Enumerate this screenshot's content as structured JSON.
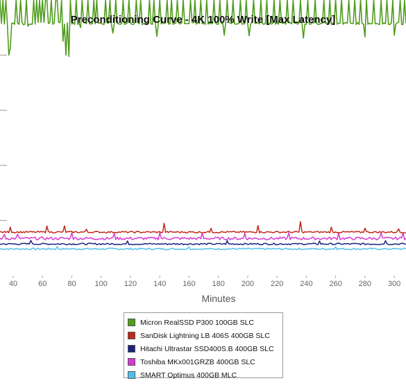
{
  "chart_data": {
    "type": "line",
    "title": "Preconditioning Curve - 4K 100% Write [Max Latency]",
    "xlabel": "Minutes",
    "ylabel": "",
    "xlim": [
      31,
      308
    ],
    "ylim": [
      0,
      1000
    ],
    "x_ticks": [
      40,
      60,
      80,
      100,
      120,
      140,
      160,
      180,
      200,
      220,
      240,
      260,
      280,
      300
    ],
    "y_gridlines": [
      200,
      400,
      600,
      800
    ],
    "grid": true,
    "legend_position": "bottom",
    "series": [
      {
        "name": "Micron RealSSD P300 100GB SLC",
        "color": "#4f9c1c",
        "baseline": 915,
        "noise": 4,
        "spike_to": 1000,
        "spikes": [
          31,
          33,
          35,
          42,
          45,
          49,
          54,
          56,
          58,
          60,
          62,
          63,
          66,
          69,
          70,
          73,
          76,
          79,
          83,
          87,
          91,
          95,
          97,
          103,
          106,
          110,
          115,
          119,
          124,
          127,
          133,
          136,
          140,
          145,
          148,
          152,
          156,
          161,
          164,
          168,
          172,
          177,
          181,
          186,
          190,
          195,
          199,
          204,
          209,
          213,
          218,
          222,
          227,
          231,
          236,
          241,
          246,
          252,
          256,
          260,
          264,
          269,
          273,
          277,
          281,
          286,
          291,
          295,
          299,
          304,
          307
        ],
        "dips": [
          {
            "x": 37,
            "y": 800
          },
          {
            "x": 38,
            "y": 825
          },
          {
            "x": 47,
            "y": 910
          },
          {
            "x": 50,
            "y": 905
          },
          {
            "x": 74,
            "y": 850
          },
          {
            "x": 76,
            "y": 800
          },
          {
            "x": 78,
            "y": 795
          },
          {
            "x": 86,
            "y": 900
          },
          {
            "x": 108,
            "y": 880
          },
          {
            "x": 138,
            "y": 868
          },
          {
            "x": 184,
            "y": 872
          },
          {
            "x": 201,
            "y": 870
          },
          {
            "x": 238,
            "y": 862
          },
          {
            "x": 280,
            "y": 866
          },
          {
            "x": 300,
            "y": 872
          }
        ]
      },
      {
        "name": "SanDisk Lightning LB 406S 400GB SLC",
        "color": "#c0281c",
        "baseline": 158,
        "noise": 3,
        "spikes": [
          {
            "x": 38,
            "y": 176
          },
          {
            "x": 63,
            "y": 180
          },
          {
            "x": 75,
            "y": 181
          },
          {
            "x": 90,
            "y": 168
          },
          {
            "x": 143,
            "y": 190
          },
          {
            "x": 175,
            "y": 172
          },
          {
            "x": 207,
            "y": 182
          },
          {
            "x": 236,
            "y": 196
          },
          {
            "x": 257,
            "y": 176
          },
          {
            "x": 280,
            "y": 172
          },
          {
            "x": 303,
            "y": 170
          }
        ]
      },
      {
        "name": "Hitachi Ultrastar SSD400S.B 400GB SLC",
        "color": "#1a237e",
        "baseline": 115,
        "noise": 3,
        "spikes": [
          {
            "x": 52,
            "y": 128
          },
          {
            "x": 118,
            "y": 126
          },
          {
            "x": 186,
            "y": 127
          },
          {
            "x": 249,
            "y": 126
          },
          {
            "x": 294,
            "y": 127
          }
        ]
      },
      {
        "name": "Toshiba MKx001GRZB 400GB SLC",
        "color": "#d63ad1",
        "baseline": 135,
        "noise": 5,
        "spikes": [
          {
            "x": 34,
            "y": 150
          },
          {
            "x": 43,
            "y": 150
          },
          {
            "x": 80,
            "y": 156
          },
          {
            "x": 109,
            "y": 153
          },
          {
            "x": 140,
            "y": 157
          },
          {
            "x": 169,
            "y": 155
          },
          {
            "x": 198,
            "y": 154
          },
          {
            "x": 228,
            "y": 156
          },
          {
            "x": 262,
            "y": 155
          },
          {
            "x": 291,
            "y": 155
          },
          {
            "x": 306,
            "y": 156
          }
        ]
      },
      {
        "name": "SMART Optimus 400GB MLC",
        "color": "#4fc0ee",
        "baseline": 97,
        "noise": 3,
        "spikes": [
          {
            "x": 70,
            "y": 105
          },
          {
            "x": 160,
            "y": 104
          },
          {
            "x": 260,
            "y": 105
          }
        ]
      }
    ]
  }
}
